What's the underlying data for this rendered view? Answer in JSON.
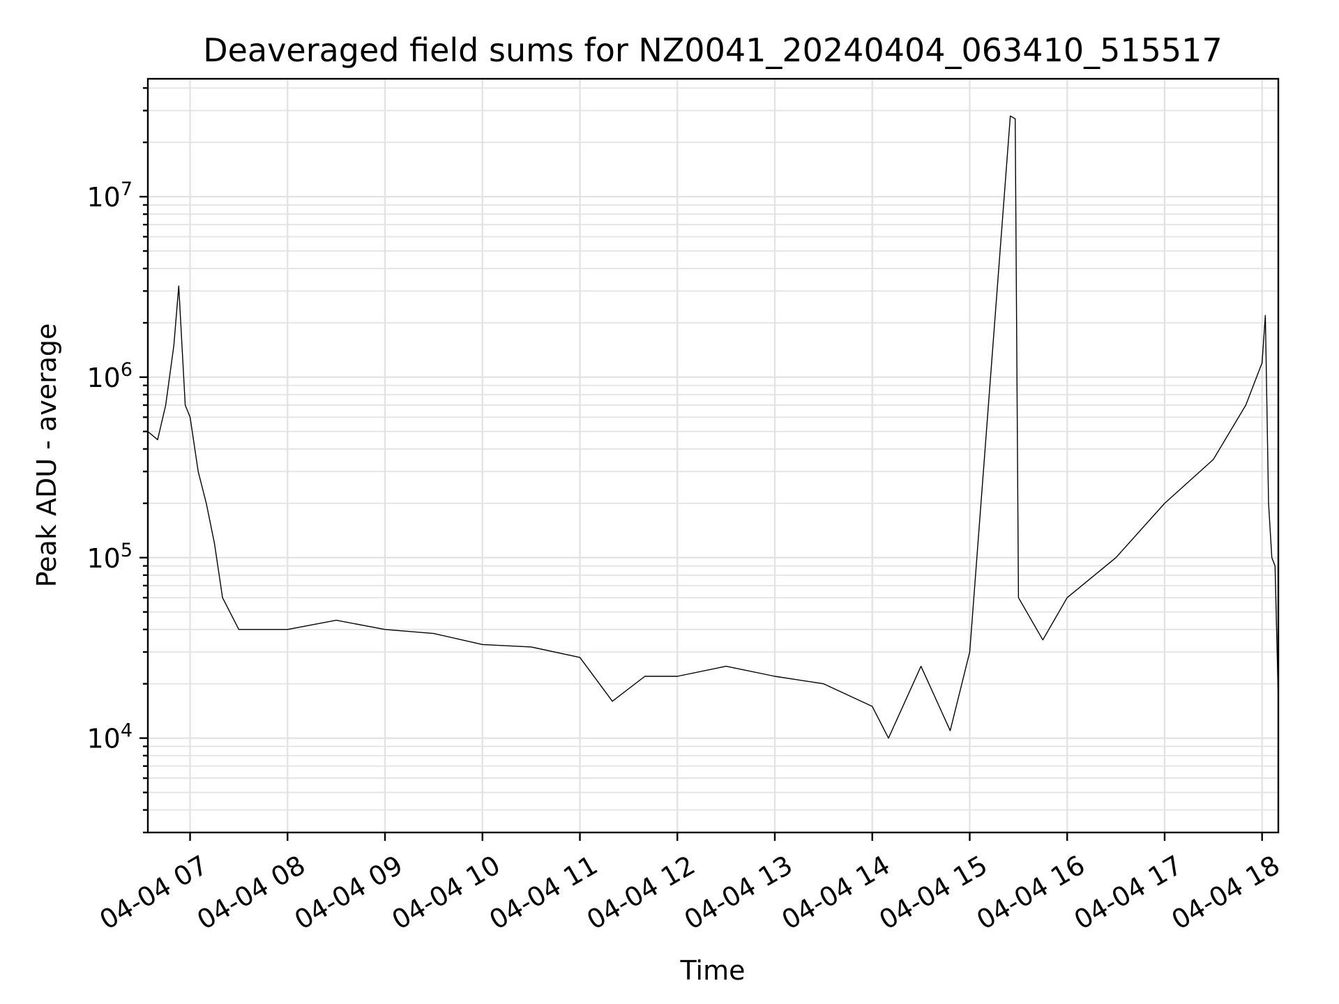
{
  "chart_data": {
    "type": "line",
    "title": "Deaveraged field sums for NZ0041_20240404_063410_515517",
    "xlabel": "Time",
    "ylabel": "Peak ADU - average",
    "yscale": "log",
    "xlim": [
      "2024-04-04 06:34",
      "2024-04-04 18:10"
    ],
    "ylim": [
      3000,
      45000000
    ],
    "grid": true,
    "x_tick_labels": [
      "04-04 07",
      "04-04 08",
      "04-04 09",
      "04-04 10",
      "04-04 11",
      "04-04 12",
      "04-04 13",
      "04-04 14",
      "04-04 15",
      "04-04 16",
      "04-04 17",
      "04-04 18"
    ],
    "y_tick_labels": [
      {
        "value": 10000,
        "base": "10",
        "exp": "4"
      },
      {
        "value": 100000,
        "base": "10",
        "exp": "5"
      },
      {
        "value": 1000000,
        "base": "10",
        "exp": "6"
      },
      {
        "value": 10000000,
        "base": "10",
        "exp": "7"
      }
    ],
    "series": [
      {
        "color": "#000000",
        "points": [
          [
            "2024-04-04 06:34",
            500000
          ],
          [
            "2024-04-04 06:40",
            450000
          ],
          [
            "2024-04-04 06:45",
            700000
          ],
          [
            "2024-04-04 06:50",
            1500000
          ],
          [
            "2024-04-04 06:53",
            3200000
          ],
          [
            "2024-04-04 06:57",
            700000
          ],
          [
            "2024-04-04 07:00",
            600000
          ],
          [
            "2024-04-04 07:05",
            300000
          ],
          [
            "2024-04-04 07:10",
            200000
          ],
          [
            "2024-04-04 07:15",
            120000
          ],
          [
            "2024-04-04 07:20",
            60000
          ],
          [
            "2024-04-04 07:30",
            40000
          ],
          [
            "2024-04-04 08:00",
            40000
          ],
          [
            "2024-04-04 08:30",
            45000
          ],
          [
            "2024-04-04 09:00",
            40000
          ],
          [
            "2024-04-04 09:30",
            38000
          ],
          [
            "2024-04-04 10:00",
            33000
          ],
          [
            "2024-04-04 10:30",
            32000
          ],
          [
            "2024-04-04 11:00",
            28000
          ],
          [
            "2024-04-04 11:20",
            16000
          ],
          [
            "2024-04-04 11:40",
            22000
          ],
          [
            "2024-04-04 12:00",
            22000
          ],
          [
            "2024-04-04 12:30",
            25000
          ],
          [
            "2024-04-04 13:00",
            22000
          ],
          [
            "2024-04-04 13:30",
            20000
          ],
          [
            "2024-04-04 14:00",
            15000
          ],
          [
            "2024-04-04 14:10",
            10000
          ],
          [
            "2024-04-04 14:30",
            25000
          ],
          [
            "2024-04-04 14:48",
            11000
          ],
          [
            "2024-04-04 15:00",
            30000
          ],
          [
            "2024-04-04 15:25",
            28000000
          ],
          [
            "2024-04-04 15:28",
            27000000
          ],
          [
            "2024-04-04 15:30",
            60000
          ],
          [
            "2024-04-04 15:45",
            35000
          ],
          [
            "2024-04-04 16:00",
            60000
          ],
          [
            "2024-04-04 16:30",
            100000
          ],
          [
            "2024-04-04 17:00",
            200000
          ],
          [
            "2024-04-04 17:30",
            350000
          ],
          [
            "2024-04-04 17:50",
            700000
          ],
          [
            "2024-04-04 18:00",
            1200000
          ],
          [
            "2024-04-04 18:02",
            2200000
          ],
          [
            "2024-04-04 18:04",
            200000
          ],
          [
            "2024-04-04 18:06",
            100000
          ],
          [
            "2024-04-04 18:08",
            90000
          ],
          [
            "2024-04-04 18:10",
            16000
          ]
        ]
      }
    ]
  }
}
